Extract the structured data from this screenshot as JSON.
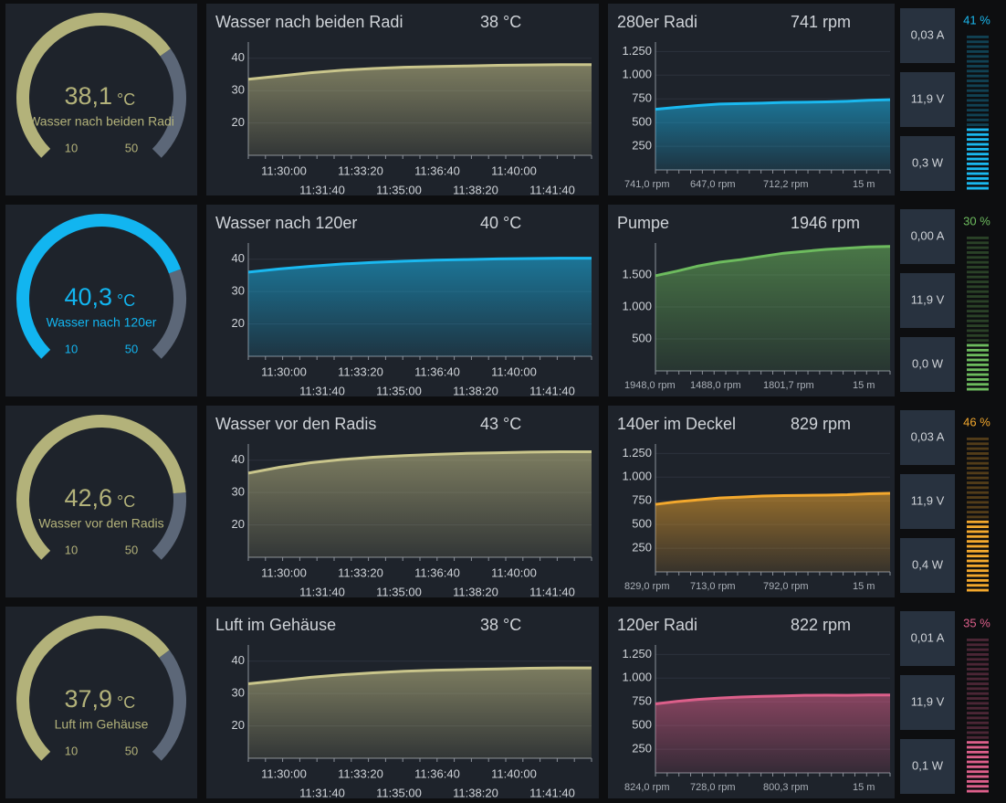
{
  "time_axis": [
    "11:30:00",
    "11:31:40",
    "11:33:20",
    "11:35:00",
    "11:36:40",
    "11:38:20",
    "11:40:00",
    "11:41:40"
  ],
  "rows": [
    {
      "gauge": {
        "value": 38.1,
        "label": "38,1",
        "unit": "°C",
        "name": "Wasser nach beiden Radi",
        "min": 10,
        "max": 50,
        "color": "#b3b27a"
      },
      "temp_chart": {
        "title": "Wasser nach beiden Radi",
        "current": "38 °C",
        "color": "#c9c58b",
        "ylim": [
          10,
          45
        ],
        "yticks": [
          20,
          30,
          40
        ],
        "values": [
          33.5,
          34.5,
          35.5,
          36.3,
          36.8,
          37.2,
          37.4,
          37.6,
          37.8,
          37.9,
          38,
          38
        ]
      },
      "fan_chart": {
        "title": "280er Radi",
        "current": "741 rpm",
        "color": "#1ab8ef",
        "ylim": [
          0,
          1350
        ],
        "yticks": [
          250,
          500,
          750,
          {
            "value": 1000,
            "label": "1.000"
          },
          {
            "value": 1250,
            "label": "1.250"
          }
        ],
        "values": [
          640,
          660,
          680,
          695,
          700,
          705,
          712,
          715,
          718,
          725,
          735,
          741
        ],
        "footer": [
          "741,0 rpm",
          "647,0 rpm",
          "712,2 rpm",
          "15 m"
        ]
      },
      "stats": [
        "0,03 A",
        "11,9 V",
        "0,3 W"
      ],
      "level": {
        "value": 41,
        "label": "41 %"
      }
    },
    {
      "gauge": {
        "value": 40.3,
        "label": "40,3",
        "unit": "°C",
        "name": "Wasser nach 120er",
        "min": 10,
        "max": 50,
        "color": "#12b5f0"
      },
      "temp_chart": {
        "title": "Wasser nach 120er",
        "current": "40 °C",
        "color": "#1ab8ef",
        "ylim": [
          10,
          45
        ],
        "yticks": [
          20,
          30,
          40
        ],
        "values": [
          36,
          37,
          37.8,
          38.5,
          39,
          39.4,
          39.7,
          39.9,
          40.1,
          40.2,
          40.3,
          40.3
        ]
      },
      "fan_chart": {
        "title": "Pumpe",
        "current": "1946 rpm",
        "color": "#6dbb5e",
        "ylim": [
          0,
          2000
        ],
        "yticks": [
          500,
          {
            "value": 1000,
            "label": "1.000"
          },
          {
            "value": 1500,
            "label": "1.500"
          }
        ],
        "values": [
          1488,
          1560,
          1640,
          1700,
          1740,
          1790,
          1840,
          1870,
          1900,
          1920,
          1940,
          1946
        ],
        "footer": [
          "1948,0 rpm",
          "1488,0 rpm",
          "1801,7 rpm",
          "15 m"
        ]
      },
      "stats": [
        "0,00 A",
        "11,9 V",
        "0,0 W"
      ],
      "level": {
        "value": 30,
        "label": "30 %"
      }
    },
    {
      "gauge": {
        "value": 42.6,
        "label": "42,6",
        "unit": "°C",
        "name": "Wasser vor den Radis",
        "min": 10,
        "max": 50,
        "color": "#b3b27a"
      },
      "temp_chart": {
        "title": "Wasser vor den Radis",
        "current": "43 °C",
        "color": "#c9c58b",
        "ylim": [
          10,
          45
        ],
        "yticks": [
          20,
          30,
          40
        ],
        "values": [
          36,
          37.8,
          39.2,
          40.2,
          40.9,
          41.4,
          41.8,
          42.1,
          42.3,
          42.5,
          42.6,
          42.6
        ]
      },
      "fan_chart": {
        "title": "140er im Deckel",
        "current": "829 rpm",
        "color": "#f3a82d",
        "ylim": [
          0,
          1350
        ],
        "yticks": [
          250,
          500,
          750,
          {
            "value": 1000,
            "label": "1.000"
          },
          {
            "value": 1250,
            "label": "1.250"
          }
        ],
        "values": [
          713,
          740,
          760,
          780,
          790,
          800,
          805,
          808,
          810,
          815,
          825,
          829
        ],
        "footer": [
          "829,0 rpm",
          "713,0 rpm",
          "792,0 rpm",
          "15 m"
        ]
      },
      "stats": [
        "0,03 A",
        "11,9 V",
        "0,4 W"
      ],
      "level": {
        "value": 46,
        "label": "46 %"
      }
    },
    {
      "gauge": {
        "value": 37.9,
        "label": "37,9",
        "unit": "°C",
        "name": "Luft im Gehäuse",
        "min": 10,
        "max": 50,
        "color": "#b3b27a"
      },
      "temp_chart": {
        "title": "Luft im Gehäuse",
        "current": "38 °C",
        "color": "#c9c58b",
        "ylim": [
          10,
          45
        ],
        "yticks": [
          20,
          30,
          40
        ],
        "values": [
          33,
          34,
          35,
          35.8,
          36.4,
          36.9,
          37.2,
          37.4,
          37.6,
          37.8,
          37.9,
          37.9
        ]
      },
      "fan_chart": {
        "title": "120er Radi",
        "current": "822 rpm",
        "color": "#dc5f8a",
        "ylim": [
          0,
          1350
        ],
        "yticks": [
          250,
          500,
          750,
          {
            "value": 1000,
            "label": "1.000"
          },
          {
            "value": 1250,
            "label": "1.250"
          }
        ],
        "values": [
          728,
          755,
          775,
          790,
          800,
          808,
          812,
          818,
          820,
          818,
          822,
          822
        ],
        "footer": [
          "824,0 rpm",
          "728,0 rpm",
          "800,3 rpm",
          "15 m"
        ]
      },
      "stats": [
        "0,01 A",
        "11,9 V",
        "0,1 W"
      ],
      "level": {
        "value": 35,
        "label": "35 %"
      }
    }
  ]
}
